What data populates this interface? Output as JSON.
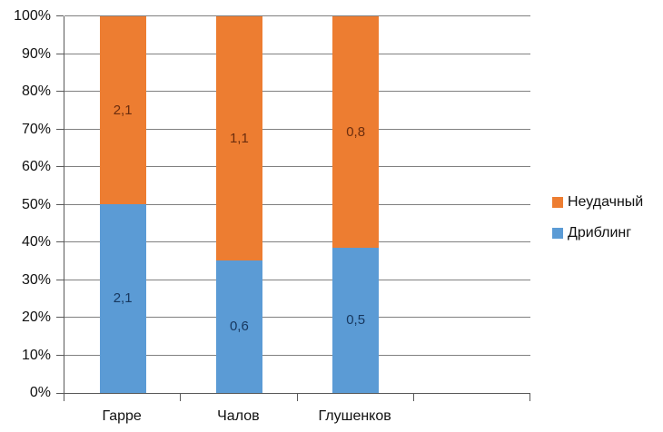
{
  "chart_data": {
    "type": "bar",
    "subtype": "stacked-100-percent-column",
    "title": "",
    "xlabel": "",
    "ylabel": "",
    "categories": [
      "Гарре",
      "Чалов",
      "Глушенков"
    ],
    "x_slots": 4,
    "series": [
      {
        "name": "Дриблинг",
        "color": "#5B9BD5",
        "label_color": "#17375E",
        "values": [
          2.1,
          0.6,
          0.5
        ],
        "labels": [
          "2,1",
          "0,6",
          "0,5"
        ],
        "percent_of_total": [
          50.0,
          35.3,
          38.5
        ]
      },
      {
        "name": "Неудачный",
        "color": "#ED7D31",
        "label_color": "#6B2D0E",
        "values": [
          2.1,
          1.1,
          0.8
        ],
        "labels": [
          "2,1",
          "1,1",
          "0,8"
        ],
        "percent_of_total": [
          50.0,
          64.7,
          61.5
        ]
      }
    ],
    "y_axis": {
      "min": 0,
      "max": 100,
      "tick_step": 10,
      "tick_labels": [
        "0%",
        "10%",
        "20%",
        "30%",
        "40%",
        "50%",
        "60%",
        "70%",
        "80%",
        "90%",
        "100%"
      ]
    },
    "grid": true,
    "legend": {
      "position": "right",
      "entries": [
        {
          "label": "Неудачный",
          "color": "#ED7D31"
        },
        {
          "label": "Дриблинг",
          "color": "#5B9BD5"
        }
      ]
    }
  },
  "styles": {
    "background": "#ffffff",
    "gridline_color": "#808080",
    "axis_color": "#595959",
    "text_color": "#111111"
  }
}
